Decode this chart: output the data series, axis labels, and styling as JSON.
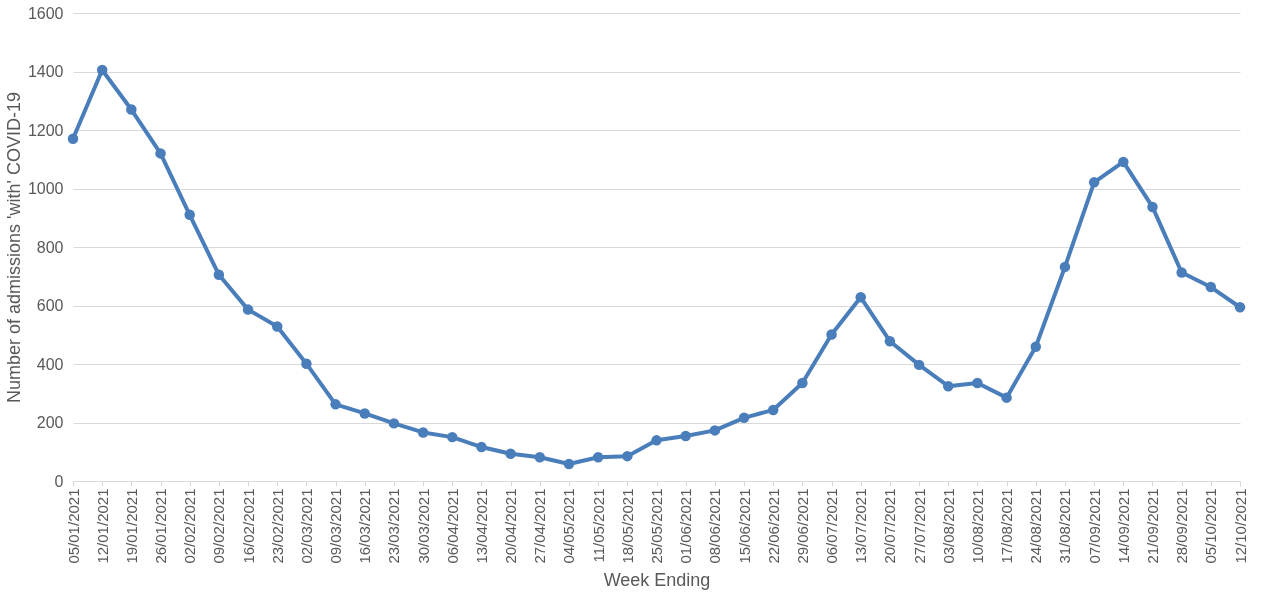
{
  "chart_data": {
    "type": "line",
    "xlabel": "Week Ending",
    "ylabel": "Number of admissions 'with' COVID-19",
    "categories": [
      "05/01/2021",
      "12/01/2021",
      "19/01/2021",
      "26/01/2021",
      "02/02/2021",
      "09/02/2021",
      "16/02/2021",
      "23/02/2021",
      "02/03/2021",
      "09/03/2021",
      "16/03/2021",
      "23/03/2021",
      "30/03/2021",
      "06/04/2021",
      "13/04/2021",
      "20/04/2021",
      "27/04/2021",
      "04/05/2021",
      "11/05/2021",
      "18/05/2021",
      "25/05/2021",
      "01/06/2021",
      "08/06/2021",
      "15/06/2021",
      "22/06/2021",
      "29/06/2021",
      "06/07/2021",
      "13/07/2021",
      "20/07/2021",
      "27/07/2021",
      "03/08/2021",
      "10/08/2021",
      "17/08/2021",
      "24/08/2021",
      "31/08/2021",
      "07/09/2021",
      "14/09/2021",
      "21/09/2021",
      "28/09/2021",
      "05/10/2021",
      "12/10/2021"
    ],
    "series": [
      {
        "color": "#4a7ebb",
        "values": [
          1170,
          1405,
          1270,
          1120,
          910,
          705,
          586,
          528,
          401,
          262,
          231,
          197,
          166,
          150,
          116,
          93,
          81,
          58,
          81,
          85,
          139,
          154,
          173,
          216,
          243,
          335,
          501,
          628,
          478,
          397,
          324,
          335,
          285,
          459,
          732,
          1021,
          1091,
          937,
          713,
          663,
          594
        ]
      }
    ],
    "ylim": [
      0,
      1600
    ],
    "yticks": [
      0,
      200,
      400,
      600,
      800,
      1000,
      1200,
      1400,
      1600
    ],
    "grid": "y",
    "legend": false,
    "marker": "circle",
    "line_style": "solid"
  }
}
